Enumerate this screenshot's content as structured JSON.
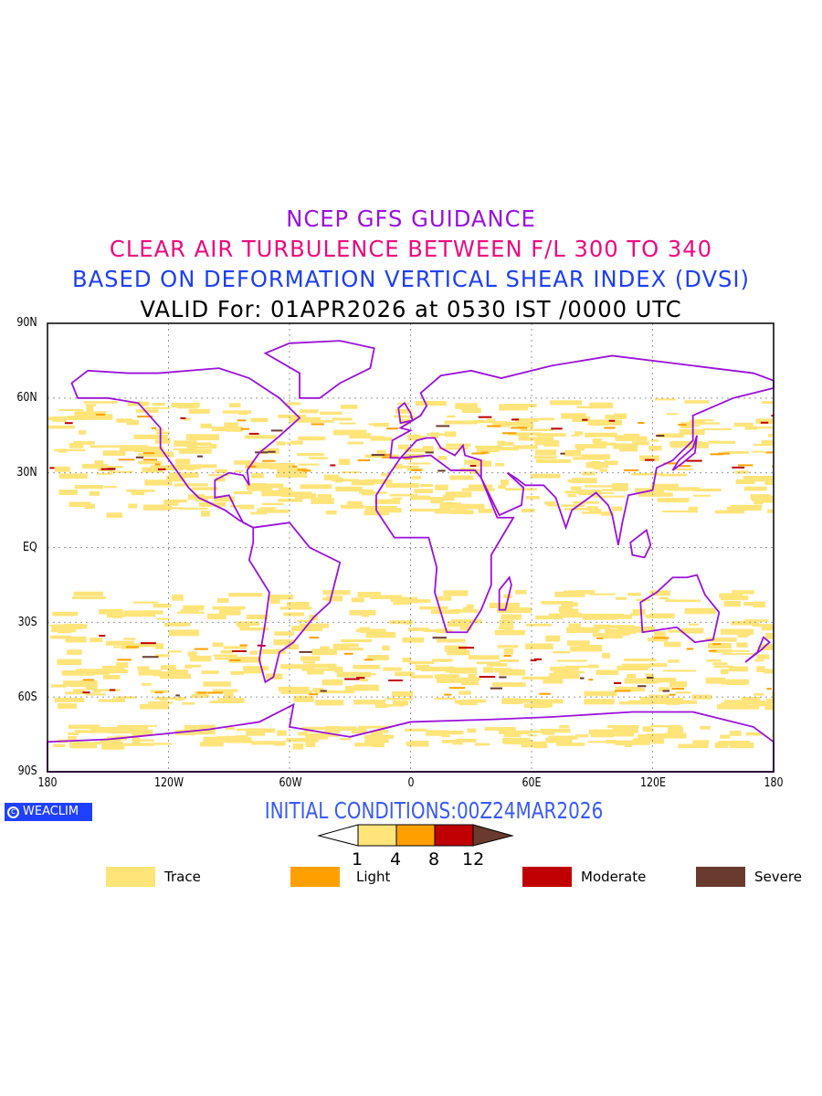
{
  "titles": {
    "line1": "NCEP GFS GUIDANCE",
    "line2": "CLEAR AIR TURBULENCE BETWEEN F/L 300 TO 340",
    "line3": "BASED ON DEFORMATION VERTICAL SHEAR INDEX (DVSI)",
    "line4": "VALID For: 01APR2026 at 0530 IST /0000 UTC"
  },
  "axes": {
    "y_ticks": [
      "90N",
      "60N",
      "30N",
      "EQ",
      "30S",
      "60S",
      "90S"
    ],
    "x_ticks": [
      "180",
      "120W",
      "60W",
      "0",
      "60E",
      "120E",
      "180"
    ]
  },
  "logo": {
    "text": "WEACLIM",
    "icon": "copyright-icon"
  },
  "initial_conditions": "INITIAL CONDITIONS:00Z24MAR2026",
  "colorbar": {
    "levels": [
      "1",
      "4",
      "8",
      "12"
    ],
    "colors": [
      "#ffffff",
      "#ffe47a",
      "#ffa000",
      "#c00000",
      "#6a3a2e"
    ]
  },
  "legend": [
    {
      "label": "Trace",
      "color": "#ffe47a"
    },
    {
      "label": "Light",
      "color": "#ffa000"
    },
    {
      "label": "Moderate",
      "color": "#c00000"
    },
    {
      "label": "Severe",
      "color": "#6a3a2e"
    }
  ],
  "colors": {
    "coast": "#9a11d8",
    "grid": "#888888"
  }
}
